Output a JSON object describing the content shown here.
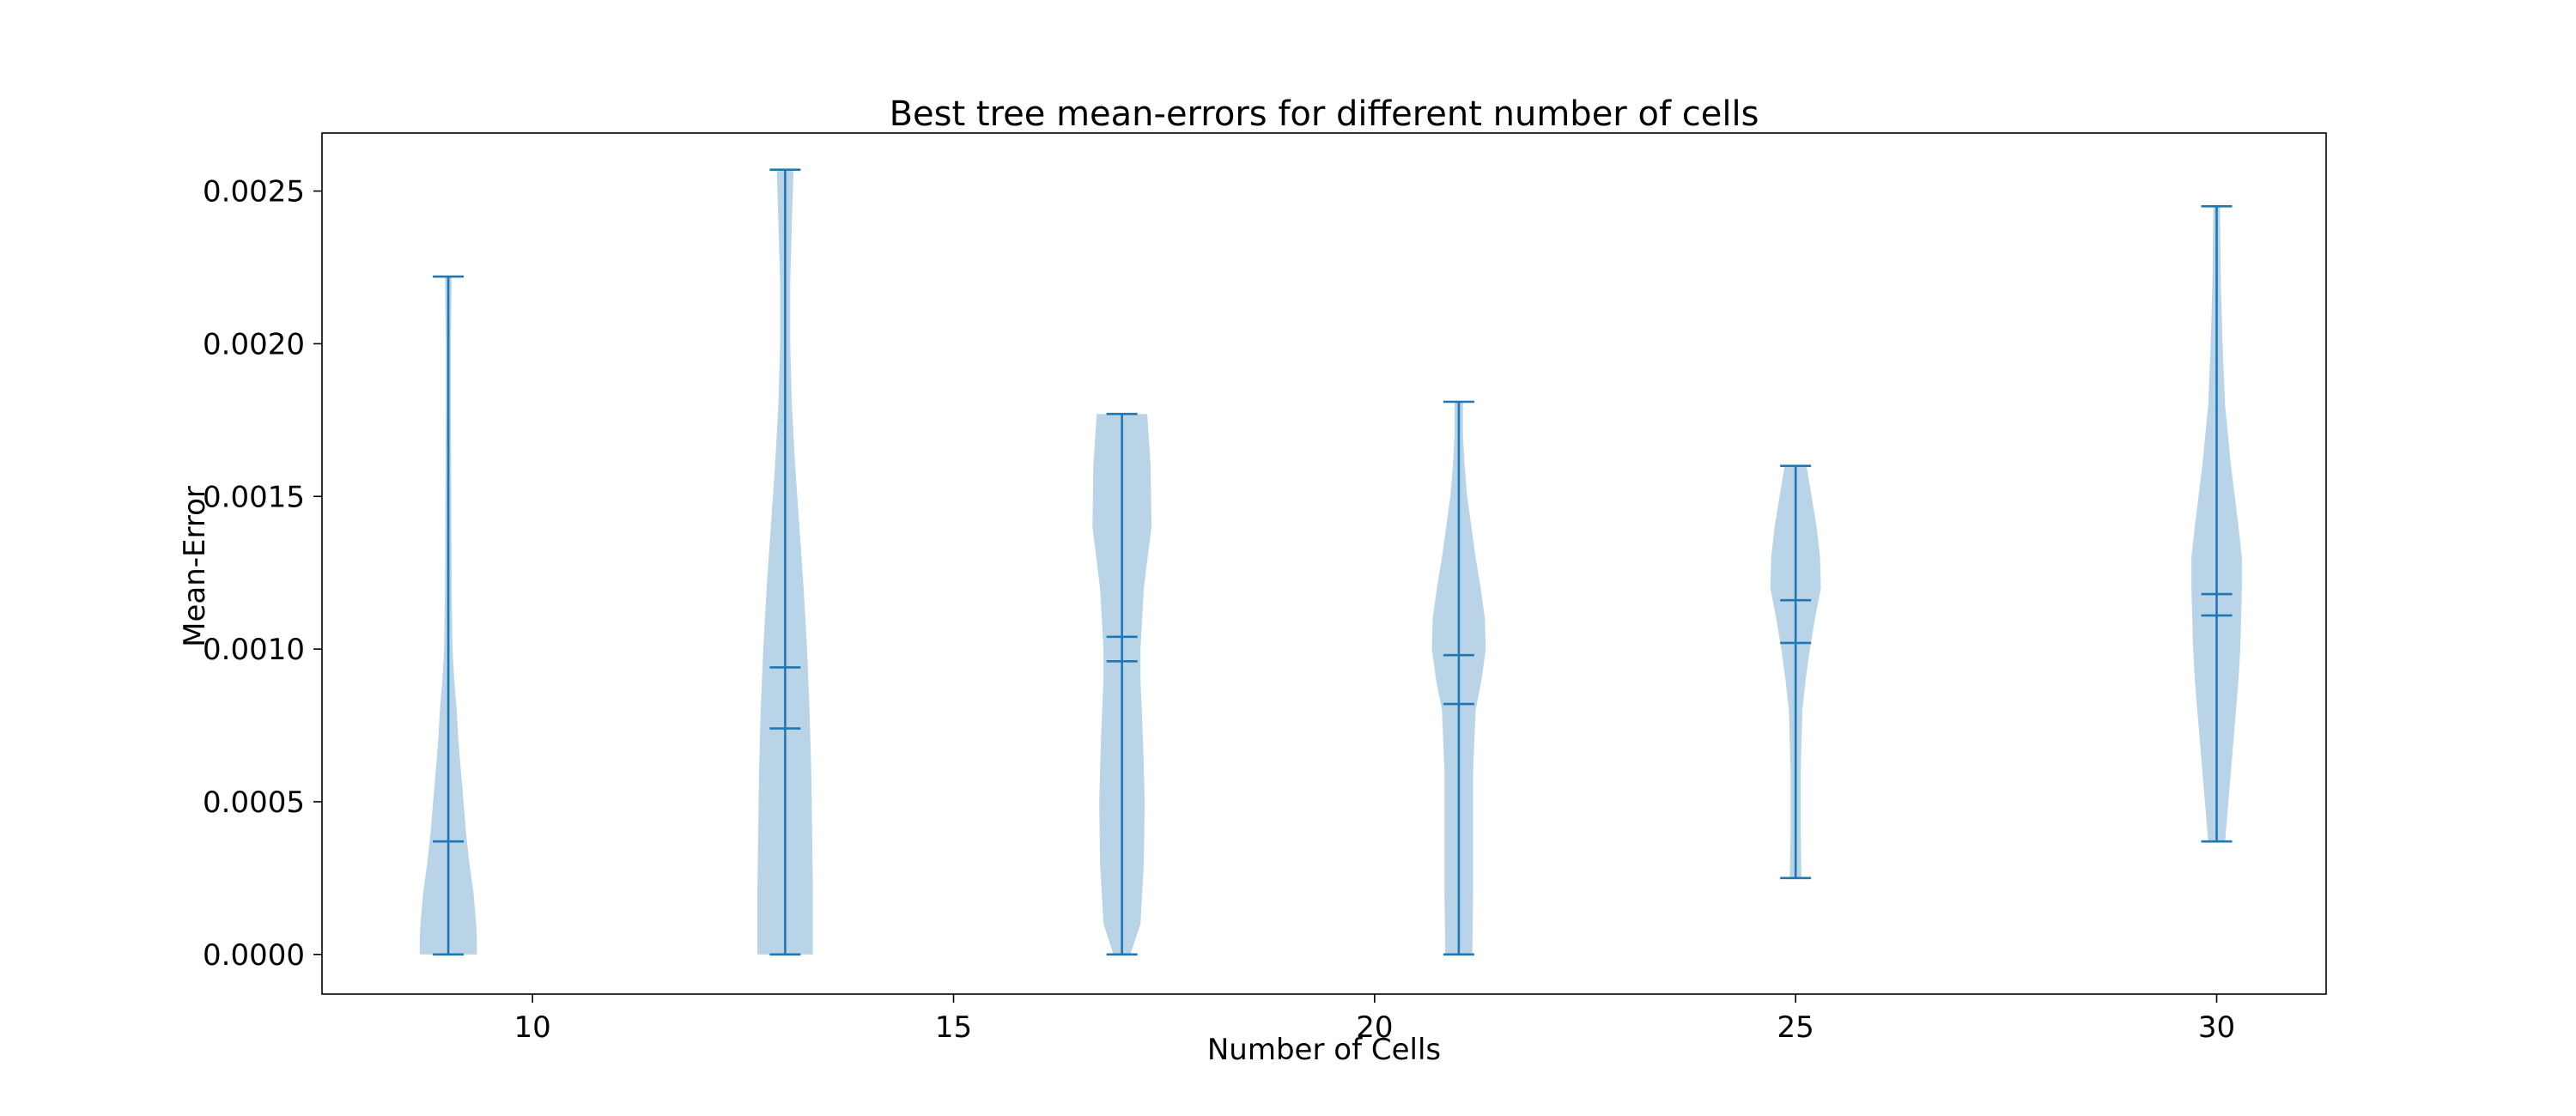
{
  "chart_data": {
    "type": "violin",
    "title": "Best tree mean-errors for different number of cells",
    "xlabel": "Number of Cells",
    "ylabel": "Mean-Error",
    "xlim": [
      7.5,
      31.3
    ],
    "ylim": [
      -0.00013,
      0.00269
    ],
    "x_ticks": [
      10,
      15,
      20,
      25,
      30
    ],
    "x_tick_labels": [
      "10",
      "15",
      "20",
      "25",
      "30"
    ],
    "y_ticks": [
      0.0,
      0.0005,
      0.001,
      0.0015,
      0.002,
      0.0025
    ],
    "y_tick_labels": [
      "0.0000",
      "0.0005",
      "0.0010",
      "0.0015",
      "0.0020",
      "0.0025"
    ],
    "grid": false,
    "color": "#1f77b4",
    "fill_color": "#b9d4e7",
    "violins": [
      {
        "x": 9,
        "min": 0.0,
        "max": 0.00222,
        "mean": 0.00037,
        "median": 0.00037,
        "profile": [
          [
            0.0,
            0.34
          ],
          [
            5e-05,
            0.34
          ],
          [
            0.0001,
            0.33
          ],
          [
            0.0002,
            0.3
          ],
          [
            0.0003,
            0.25
          ],
          [
            0.0004,
            0.21
          ],
          [
            0.0005,
            0.18
          ],
          [
            0.0006,
            0.15
          ],
          [
            0.0007,
            0.12
          ],
          [
            0.0008,
            0.1
          ],
          [
            0.0009,
            0.07
          ],
          [
            0.001,
            0.05
          ],
          [
            0.0012,
            0.04
          ],
          [
            0.0015,
            0.035
          ],
          [
            0.0018,
            0.03
          ],
          [
            0.002,
            0.03
          ],
          [
            0.00222,
            0.04
          ]
        ]
      },
      {
        "x": 13,
        "min": 0.0,
        "max": 0.00257,
        "mean": 0.00094,
        "median": 0.00074,
        "profile": [
          [
            0.0,
            0.33
          ],
          [
            0.0002,
            0.33
          ],
          [
            0.0004,
            0.32
          ],
          [
            0.0006,
            0.31
          ],
          [
            0.0008,
            0.29
          ],
          [
            0.001,
            0.26
          ],
          [
            0.0012,
            0.22
          ],
          [
            0.0014,
            0.17
          ],
          [
            0.0016,
            0.12
          ],
          [
            0.0018,
            0.08
          ],
          [
            0.002,
            0.06
          ],
          [
            0.0022,
            0.06
          ],
          [
            0.0024,
            0.08
          ],
          [
            0.00257,
            0.1
          ]
        ]
      },
      {
        "x": 17,
        "min": 0.0,
        "max": 0.00177,
        "mean": 0.00104,
        "median": 0.00096,
        "profile": [
          [
            0.0,
            0.1
          ],
          [
            0.0001,
            0.22
          ],
          [
            0.0003,
            0.26
          ],
          [
            0.0005,
            0.27
          ],
          [
            0.0007,
            0.25
          ],
          [
            0.0009,
            0.22
          ],
          [
            0.001,
            0.22
          ],
          [
            0.0012,
            0.26
          ],
          [
            0.0014,
            0.35
          ],
          [
            0.0016,
            0.34
          ],
          [
            0.00177,
            0.3
          ]
        ]
      },
      {
        "x": 21,
        "min": 0.0,
        "max": 0.00181,
        "mean": 0.00098,
        "median": 0.00082,
        "profile": [
          [
            0.0,
            0.16
          ],
          [
            0.0002,
            0.17
          ],
          [
            0.0004,
            0.17
          ],
          [
            0.0006,
            0.17
          ],
          [
            0.0008,
            0.2
          ],
          [
            0.0009,
            0.27
          ],
          [
            0.001,
            0.32
          ],
          [
            0.0011,
            0.31
          ],
          [
            0.0012,
            0.26
          ],
          [
            0.0013,
            0.2
          ],
          [
            0.0014,
            0.15
          ],
          [
            0.0015,
            0.1
          ],
          [
            0.0016,
            0.07
          ],
          [
            0.0017,
            0.05
          ],
          [
            0.00181,
            0.05
          ]
        ]
      },
      {
        "x": 25,
        "min": 0.00025,
        "max": 0.0016,
        "mean": 0.00116,
        "median": 0.00102,
        "profile": [
          [
            0.00025,
            0.07
          ],
          [
            0.0004,
            0.06
          ],
          [
            0.0006,
            0.06
          ],
          [
            0.0008,
            0.08
          ],
          [
            0.0009,
            0.12
          ],
          [
            0.001,
            0.17
          ],
          [
            0.0011,
            0.23
          ],
          [
            0.0012,
            0.3
          ],
          [
            0.0013,
            0.29
          ],
          [
            0.0014,
            0.25
          ],
          [
            0.0015,
            0.19
          ],
          [
            0.0016,
            0.13
          ]
        ]
      },
      {
        "x": 30,
        "min": 0.00037,
        "max": 0.00245,
        "mean": 0.00118,
        "median": 0.00111,
        "profile": [
          [
            0.00037,
            0.1
          ],
          [
            0.0005,
            0.14
          ],
          [
            0.0007,
            0.2
          ],
          [
            0.0009,
            0.26
          ],
          [
            0.001,
            0.28
          ],
          [
            0.0011,
            0.29
          ],
          [
            0.0012,
            0.3
          ],
          [
            0.0013,
            0.3
          ],
          [
            0.0014,
            0.26
          ],
          [
            0.0016,
            0.17
          ],
          [
            0.0018,
            0.1
          ],
          [
            0.002,
            0.07
          ],
          [
            0.0022,
            0.05
          ],
          [
            0.00245,
            0.04
          ]
        ]
      }
    ]
  }
}
